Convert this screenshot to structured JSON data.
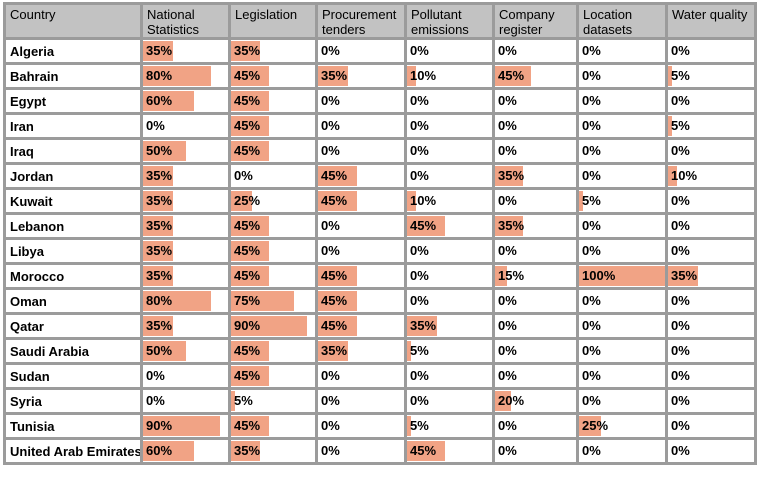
{
  "colors": {
    "bar_fill": "#f1a385",
    "header_bg": "#c2c2c2",
    "grid_border": "#9b9b9b",
    "cell_bg": "#ffffff",
    "text": "#000000"
  },
  "table": {
    "columns": [
      "Country",
      "National Statistics",
      "Legislation",
      "Procurement tenders",
      "Pollutant emissions",
      "Company register",
      "Location datasets",
      "Water quality"
    ],
    "rows": [
      {
        "country": "Algeria",
        "cells": [
          "35%",
          "35%",
          "0%",
          "0%",
          "0%",
          "0%",
          "0%"
        ]
      },
      {
        "country": "Bahrain",
        "cells": [
          "80%",
          "45%",
          "35%",
          "10%",
          "45%",
          "0%",
          "5%"
        ]
      },
      {
        "country": "Egypt",
        "cells": [
          "60%",
          "45%",
          "0%",
          "0%",
          "0%",
          "0%",
          "0%"
        ]
      },
      {
        "country": "Iran",
        "cells": [
          "0%",
          "45%",
          "0%",
          "0%",
          "0%",
          "0%",
          "5%"
        ]
      },
      {
        "country": "Iraq",
        "cells": [
          "50%",
          "45%",
          "0%",
          "0%",
          "0%",
          "0%",
          "0%"
        ]
      },
      {
        "country": "Jordan",
        "cells": [
          "35%",
          "0%",
          "45%",
          "0%",
          "35%",
          "0%",
          "10%"
        ]
      },
      {
        "country": "Kuwait",
        "cells": [
          "35%",
          "25%",
          "45%",
          "10%",
          "0%",
          "5%",
          "0%"
        ]
      },
      {
        "country": "Lebanon",
        "cells": [
          "35%",
          "45%",
          "0%",
          "45%",
          "35%",
          "0%",
          "0%"
        ]
      },
      {
        "country": "Libya",
        "cells": [
          "35%",
          "45%",
          "0%",
          "0%",
          "0%",
          "0%",
          "0%"
        ]
      },
      {
        "country": "Morocco",
        "cells": [
          "35%",
          "45%",
          "45%",
          "0%",
          "15%",
          "100%",
          "35%"
        ]
      },
      {
        "country": "Oman",
        "cells": [
          "80%",
          "75%",
          "45%",
          "0%",
          "0%",
          "0%",
          "0%"
        ]
      },
      {
        "country": "Qatar",
        "cells": [
          "35%",
          "90%",
          "45%",
          "35%",
          "0%",
          "0%",
          "0%"
        ]
      },
      {
        "country": "Saudi Arabia",
        "cells": [
          "50%",
          "45%",
          "35%",
          "5%",
          "0%",
          "0%",
          "0%"
        ]
      },
      {
        "country": "Sudan",
        "cells": [
          "0%",
          "45%",
          "0%",
          "0%",
          "0%",
          "0%",
          "0%"
        ]
      },
      {
        "country": "Syria",
        "cells": [
          "0%",
          "5%",
          "0%",
          "0%",
          "20%",
          "0%",
          "0%"
        ]
      },
      {
        "country": "Tunisia",
        "cells": [
          "90%",
          "45%",
          "0%",
          "5%",
          "0%",
          "25%",
          "0%"
        ]
      },
      {
        "country": "United Arab Emirates",
        "cells": [
          "60%",
          "35%",
          "0%",
          "45%",
          "0%",
          "0%",
          "0%"
        ]
      }
    ]
  },
  "chart_data": {
    "type": "table",
    "title": "",
    "unit": "%",
    "categories": [
      "Algeria",
      "Bahrain",
      "Egypt",
      "Iran",
      "Iraq",
      "Jordan",
      "Kuwait",
      "Lebanon",
      "Libya",
      "Morocco",
      "Oman",
      "Qatar",
      "Saudi Arabia",
      "Sudan",
      "Syria",
      "Tunisia",
      "United Arab Emirates"
    ],
    "series": [
      {
        "name": "National Statistics",
        "values": [
          35,
          80,
          60,
          0,
          50,
          35,
          35,
          35,
          35,
          35,
          80,
          35,
          50,
          0,
          0,
          90,
          60
        ]
      },
      {
        "name": "Legislation",
        "values": [
          35,
          45,
          45,
          45,
          45,
          0,
          25,
          45,
          45,
          45,
          75,
          90,
          45,
          45,
          5,
          45,
          35
        ]
      },
      {
        "name": "Procurement tenders",
        "values": [
          0,
          35,
          0,
          0,
          0,
          45,
          45,
          0,
          0,
          45,
          45,
          45,
          35,
          0,
          0,
          0,
          0
        ]
      },
      {
        "name": "Pollutant emissions",
        "values": [
          0,
          10,
          0,
          0,
          0,
          0,
          10,
          45,
          0,
          0,
          0,
          35,
          5,
          0,
          0,
          5,
          45
        ]
      },
      {
        "name": "Company register",
        "values": [
          0,
          45,
          0,
          0,
          0,
          35,
          0,
          35,
          0,
          15,
          0,
          0,
          0,
          0,
          20,
          0,
          0
        ]
      },
      {
        "name": "Location datasets",
        "values": [
          0,
          0,
          0,
          0,
          0,
          0,
          5,
          0,
          0,
          100,
          0,
          0,
          0,
          0,
          0,
          25,
          0
        ]
      },
      {
        "name": "Water quality",
        "values": [
          0,
          5,
          0,
          5,
          0,
          10,
          0,
          0,
          0,
          35,
          0,
          0,
          0,
          0,
          0,
          0,
          0
        ]
      }
    ],
    "layout": {
      "bar_scale": "cell-width = 100%",
      "bars_inline": true,
      "grid": true
    }
  }
}
